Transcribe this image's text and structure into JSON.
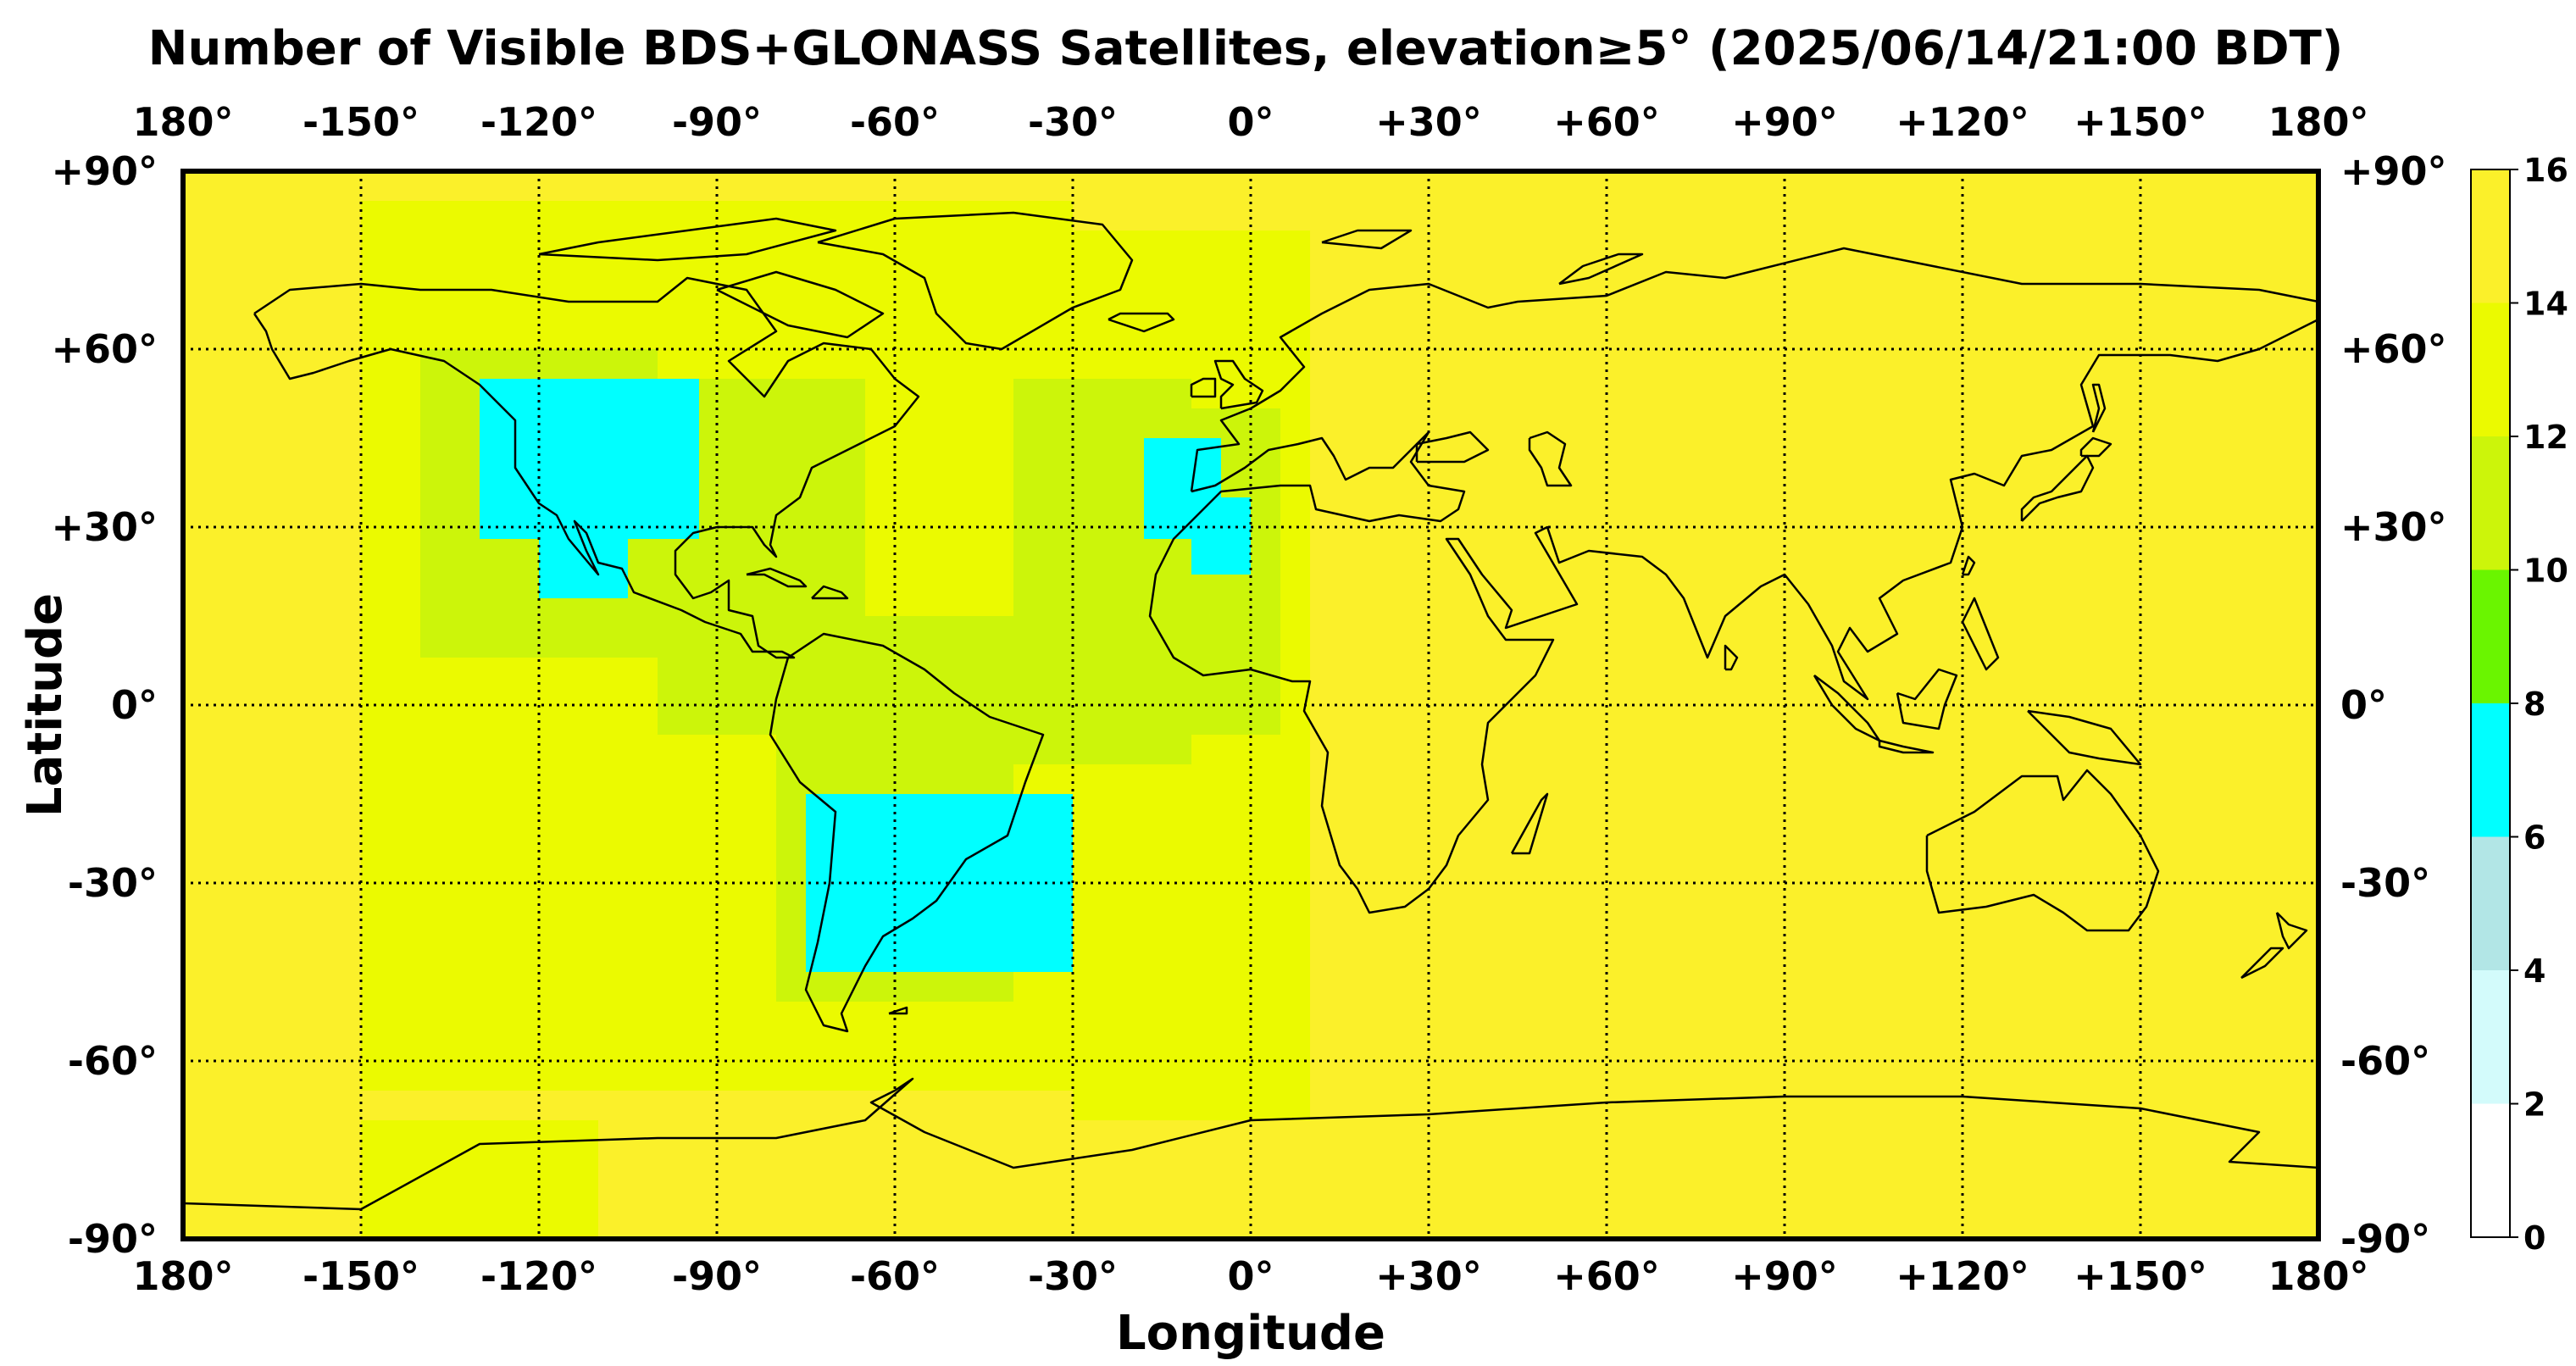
{
  "title": "Number of Visible BDS+GLONASS Satellites, elevation≥5° (2025/06/14/21:00 BDT)",
  "xlabel": "Longitude",
  "ylabel": "Latitude",
  "chart_data": {
    "type": "heatmap",
    "title": "Number of Visible BDS+GLONASS Satellites, elevation≥5° (2025/06/14/21:00 BDT)",
    "xlabel": "Longitude",
    "ylabel": "Latitude",
    "xlim": [
      -180,
      180
    ],
    "ylim": [
      -90,
      90
    ],
    "grid": true,
    "grid_style": "dotted",
    "x_ticks": [
      -180,
      -150,
      -120,
      -90,
      -60,
      -30,
      0,
      30,
      60,
      90,
      120,
      150,
      180
    ],
    "y_ticks": [
      90,
      60,
      30,
      0,
      -30,
      -60,
      -90
    ],
    "x_tick_labels": [
      "180°",
      "-150°",
      "-120°",
      "-90°",
      "-60°",
      "-30°",
      "0°",
      "+30°",
      "+60°",
      "+90°",
      "+120°",
      "+150°",
      "180°"
    ],
    "y_tick_labels": [
      "+90°",
      "+60°",
      "+30°",
      "0°",
      "-30°",
      "-60°",
      "-90°"
    ],
    "colorbar": {
      "ticks": [
        0,
        2,
        4,
        6,
        8,
        10,
        12,
        14,
        16
      ],
      "tick_labels": [
        "0",
        "2",
        "4",
        "6",
        "8",
        "10",
        "12",
        "14",
        "16"
      ],
      "bins": [
        {
          "range": [
            0,
            2
          ],
          "color": "#ffffff"
        },
        {
          "range": [
            2,
            4
          ],
          "color": "#d3fbfb"
        },
        {
          "range": [
            4,
            6
          ],
          "color": "#b2e6e6"
        },
        {
          "range": [
            6,
            8
          ],
          "color": "#00ffff"
        },
        {
          "range": [
            8,
            10
          ],
          "color": "#6af500"
        },
        {
          "range": [
            10,
            12
          ],
          "color": "#ccf50a"
        },
        {
          "range": [
            12,
            14
          ],
          "color": "#ebfa00"
        },
        {
          "range": [
            14,
            16
          ],
          "color": "#fbf02a"
        }
      ]
    },
    "regions": [
      {
        "level": 14,
        "note": "background",
        "lon": [
          -180,
          180
        ],
        "lat": [
          -90,
          90
        ]
      },
      {
        "level": 12,
        "lon": [
          -150,
          -30
        ],
        "lat": [
          -65,
          85
        ]
      },
      {
        "level": 12,
        "lon": [
          -30,
          10
        ],
        "lat": [
          -70,
          80
        ]
      },
      {
        "level": 12,
        "lon": [
          -150,
          -110
        ],
        "lat": [
          -90,
          -70
        ]
      },
      {
        "level": 10,
        "lon": [
          -140,
          -100
        ],
        "lat": [
          8,
          60
        ]
      },
      {
        "level": 10,
        "lon": [
          -100,
          -65
        ],
        "lat": [
          -5,
          55
        ]
      },
      {
        "level": 10,
        "lon": [
          -80,
          -40
        ],
        "lat": [
          -50,
          15
        ]
      },
      {
        "level": 10,
        "lon": [
          -40,
          -10
        ],
        "lat": [
          -10,
          55
        ]
      },
      {
        "level": 10,
        "lon": [
          -20,
          5
        ],
        "lat": [
          -5,
          50
        ]
      },
      {
        "level": 6,
        "lon": [
          -130,
          -93
        ],
        "lat": [
          28,
          55
        ]
      },
      {
        "level": 6,
        "lon": [
          -120,
          -105
        ],
        "lat": [
          18,
          30
        ]
      },
      {
        "level": 6,
        "lon": [
          -18,
          -5
        ],
        "lat": [
          28,
          45
        ]
      },
      {
        "level": 6,
        "lon": [
          -10,
          0
        ],
        "lat": [
          22,
          35
        ]
      },
      {
        "level": 6,
        "lon": [
          -75,
          -30
        ],
        "lat": [
          -45,
          -15
        ]
      }
    ]
  },
  "icons": {
    "map": "world-coastlines"
  }
}
